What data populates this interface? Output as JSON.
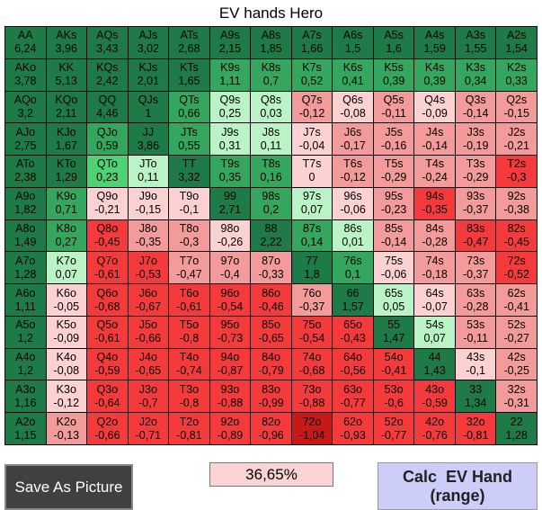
{
  "title": "EV hands Hero",
  "palette": {
    "D": "#1e7b47",
    "G": "#34a65e",
    "B": "#4fd274",
    "L": "#b9f3c6",
    "P": "#fbd1d1",
    "S": "#f39a9a",
    "R": "#f43a3a",
    "X": "#c91818"
  },
  "grid": {
    "rows": [
      [
        [
          "AA",
          "6,24",
          "D"
        ],
        [
          "AKs",
          "3,96",
          "D"
        ],
        [
          "AQs",
          "3,43",
          "D"
        ],
        [
          "AJs",
          "3,02",
          "D"
        ],
        [
          "ATs",
          "2,68",
          "D"
        ],
        [
          "A9s",
          "2,15",
          "D"
        ],
        [
          "A8s",
          "1,85",
          "D"
        ],
        [
          "A7s",
          "1,66",
          "D"
        ],
        [
          "A6s",
          "1,5",
          "D"
        ],
        [
          "A5s",
          "1,6",
          "D"
        ],
        [
          "A4s",
          "1,59",
          "D"
        ],
        [
          "A3s",
          "1,55",
          "D"
        ],
        [
          "A2s",
          "1,54",
          "D"
        ]
      ],
      [
        [
          "AKo",
          "3,78",
          "D"
        ],
        [
          "KK",
          "5,13",
          "D"
        ],
        [
          "KQs",
          "2,42",
          "D"
        ],
        [
          "KJs",
          "2,01",
          "D"
        ],
        [
          "KTs",
          "1,65",
          "D"
        ],
        [
          "K9s",
          "1,11",
          "G"
        ],
        [
          "K8s",
          "0,7",
          "G"
        ],
        [
          "K7s",
          "0,52",
          "G"
        ],
        [
          "K6s",
          "0,41",
          "G"
        ],
        [
          "K5s",
          "0,39",
          "G"
        ],
        [
          "K4s",
          "0,39",
          "G"
        ],
        [
          "K3s",
          "0,34",
          "G"
        ],
        [
          "K2s",
          "0,33",
          "G"
        ]
      ],
      [
        [
          "AQo",
          "3,2",
          "D"
        ],
        [
          "KQo",
          "2,11",
          "D"
        ],
        [
          "QQ",
          "4,46",
          "D"
        ],
        [
          "QJs",
          "1",
          "D"
        ],
        [
          "QTs",
          "0,66",
          "G"
        ],
        [
          "Q9s",
          "0,25",
          "L"
        ],
        [
          "Q8s",
          "0,03",
          "L"
        ],
        [
          "Q7s",
          "-0,12",
          "S"
        ],
        [
          "Q6s",
          "-0,08",
          "P"
        ],
        [
          "Q5s",
          "-0,11",
          "S"
        ],
        [
          "Q4s",
          "-0,09",
          "P"
        ],
        [
          "Q3s",
          "-0,14",
          "S"
        ],
        [
          "Q2s",
          "-0,15",
          "S"
        ]
      ],
      [
        [
          "AJo",
          "2,75",
          "D"
        ],
        [
          "KJo",
          "1,67",
          "D"
        ],
        [
          "QJo",
          "0,59",
          "G"
        ],
        [
          "JJ",
          "3,86",
          "D"
        ],
        [
          "JTs",
          "0,55",
          "G"
        ],
        [
          "J9s",
          "0,31",
          "L"
        ],
        [
          "J8s",
          "0,11",
          "L"
        ],
        [
          "J7s",
          "-0,04",
          "P"
        ],
        [
          "J6s",
          "-0,17",
          "S"
        ],
        [
          "J5s",
          "-0,16",
          "S"
        ],
        [
          "J4s",
          "-0,14",
          "S"
        ],
        [
          "J3s",
          "-0,19",
          "S"
        ],
        [
          "J2s",
          "-0,21",
          "S"
        ]
      ],
      [
        [
          "ATo",
          "2,38",
          "D"
        ],
        [
          "KTo",
          "1,29",
          "D"
        ],
        [
          "QTo",
          "0,23",
          "B"
        ],
        [
          "JTo",
          "0,11",
          "L"
        ],
        [
          "TT",
          "3,32",
          "D"
        ],
        [
          "T9s",
          "0,35",
          "G"
        ],
        [
          "T8s",
          "0,16",
          "G"
        ],
        [
          "T7s",
          "0",
          "P"
        ],
        [
          "T6s",
          "-0,12",
          "S"
        ],
        [
          "T5s",
          "-0,29",
          "S"
        ],
        [
          "T4s",
          "-0,24",
          "S"
        ],
        [
          "T3s",
          "-0,29",
          "S"
        ],
        [
          "T2s",
          "-0,3",
          "R"
        ]
      ],
      [
        [
          "A9o",
          "1,82",
          "D"
        ],
        [
          "K9o",
          "0,71",
          "G"
        ],
        [
          "Q9o",
          "-0,21",
          "P"
        ],
        [
          "J9o",
          "-0,15",
          "P"
        ],
        [
          "T9o",
          "-0,1",
          "P"
        ],
        [
          "99",
          "2,71",
          "D"
        ],
        [
          "98s",
          "0,2",
          "G"
        ],
        [
          "97s",
          "0,07",
          "L"
        ],
        [
          "96s",
          "-0,06",
          "P"
        ],
        [
          "95s",
          "-0,23",
          "S"
        ],
        [
          "94s",
          "-0,35",
          "R"
        ],
        [
          "93s",
          "-0,37",
          "S"
        ],
        [
          "92s",
          "-0,38",
          "S"
        ]
      ],
      [
        [
          "A8o",
          "1,49",
          "D"
        ],
        [
          "K8o",
          "0,27",
          "G"
        ],
        [
          "Q8o",
          "-0,45",
          "R"
        ],
        [
          "J8o",
          "-0,35",
          "S"
        ],
        [
          "T8o",
          "-0,3",
          "S"
        ],
        [
          "98o",
          "-0,26",
          "P"
        ],
        [
          "88",
          "2,22",
          "D"
        ],
        [
          "87s",
          "0,14",
          "G"
        ],
        [
          "86s",
          "0,01",
          "L"
        ],
        [
          "85s",
          "-0,14",
          "S"
        ],
        [
          "84s",
          "-0,28",
          "S"
        ],
        [
          "83s",
          "-0,47",
          "R"
        ],
        [
          "82s",
          "-0,45",
          "R"
        ]
      ],
      [
        [
          "A7o",
          "1,28",
          "D"
        ],
        [
          "K7o",
          "0,07",
          "L"
        ],
        [
          "Q7o",
          "-0,61",
          "R"
        ],
        [
          "J7o",
          "-0,53",
          "R"
        ],
        [
          "T7o",
          "-0,47",
          "S"
        ],
        [
          "97o",
          "-0,4",
          "S"
        ],
        [
          "87o",
          "-0,33",
          "S"
        ],
        [
          "77",
          "1,8",
          "D"
        ],
        [
          "76s",
          "0,1",
          "G"
        ],
        [
          "75s",
          "-0,06",
          "P"
        ],
        [
          "74s",
          "-0,18",
          "S"
        ],
        [
          "73s",
          "-0,37",
          "S"
        ],
        [
          "72s",
          "-0,52",
          "R"
        ]
      ],
      [
        [
          "A6o",
          "1,11",
          "D"
        ],
        [
          "K6o",
          "-0,05",
          "P"
        ],
        [
          "Q6o",
          "-0,68",
          "R"
        ],
        [
          "J6o",
          "-0,67",
          "R"
        ],
        [
          "T6o",
          "-0,61",
          "R"
        ],
        [
          "96o",
          "-0,54",
          "R"
        ],
        [
          "86o",
          "-0,46",
          "R"
        ],
        [
          "76o",
          "-0,37",
          "S"
        ],
        [
          "66",
          "1,57",
          "D"
        ],
        [
          "65s",
          "0,05",
          "L"
        ],
        [
          "64s",
          "-0,07",
          "P"
        ],
        [
          "63s",
          "-0,28",
          "S"
        ],
        [
          "62s",
          "-0,41",
          "S"
        ]
      ],
      [
        [
          "A5o",
          "1,2",
          "D"
        ],
        [
          "K5o",
          "-0,09",
          "P"
        ],
        [
          "Q5o",
          "-0,61",
          "R"
        ],
        [
          "J5o",
          "-0,66",
          "R"
        ],
        [
          "T5o",
          "-0,8",
          "R"
        ],
        [
          "95o",
          "-0,73",
          "R"
        ],
        [
          "85o",
          "-0,65",
          "R"
        ],
        [
          "75o",
          "-0,54",
          "R"
        ],
        [
          "65o",
          "-0,43",
          "R"
        ],
        [
          "55",
          "1,47",
          "D"
        ],
        [
          "54s",
          "0,07",
          "L"
        ],
        [
          "53s",
          "-0,11",
          "S"
        ],
        [
          "52s",
          "-0,27",
          "S"
        ]
      ],
      [
        [
          "A4o",
          "1,2",
          "D"
        ],
        [
          "K4o",
          "-0,08",
          "P"
        ],
        [
          "Q4o",
          "-0,59",
          "R"
        ],
        [
          "J4o",
          "-0,65",
          "R"
        ],
        [
          "T4o",
          "-0,74",
          "R"
        ],
        [
          "94o",
          "-0,87",
          "R"
        ],
        [
          "84o",
          "-0,79",
          "R"
        ],
        [
          "74o",
          "-0,68",
          "R"
        ],
        [
          "64o",
          "-0,56",
          "R"
        ],
        [
          "54o",
          "-0,41",
          "R"
        ],
        [
          "44",
          "1,43",
          "D"
        ],
        [
          "43s",
          "-0,1",
          "P"
        ],
        [
          "42s",
          "-0,25",
          "S"
        ]
      ],
      [
        [
          "A3o",
          "1,16",
          "D"
        ],
        [
          "K3o",
          "-0,12",
          "P"
        ],
        [
          "Q3o",
          "-0,64",
          "R"
        ],
        [
          "J3o",
          "-0,7",
          "R"
        ],
        [
          "T3o",
          "-0,8",
          "R"
        ],
        [
          "93o",
          "-0,88",
          "R"
        ],
        [
          "83o",
          "-0,99",
          "R"
        ],
        [
          "73o",
          "-0,88",
          "R"
        ],
        [
          "63o",
          "-0,77",
          "R"
        ],
        [
          "53o",
          "-0,6",
          "R"
        ],
        [
          "43o",
          "-0,59",
          "R"
        ],
        [
          "33",
          "1,34",
          "D"
        ],
        [
          "32s",
          "-0,31",
          "S"
        ]
      ],
      [
        [
          "A2o",
          "1,15",
          "D"
        ],
        [
          "K2o",
          "-0,13",
          "S"
        ],
        [
          "Q2o",
          "-0,66",
          "R"
        ],
        [
          "J2o",
          "-0,71",
          "R"
        ],
        [
          "T2o",
          "-0,81",
          "R"
        ],
        [
          "92o",
          "-0,89",
          "R"
        ],
        [
          "82o",
          "-0,96",
          "R"
        ],
        [
          "72o",
          "-1,04",
          "X"
        ],
        [
          "62o",
          "-0,93",
          "R"
        ],
        [
          "52o",
          "-0,77",
          "R"
        ],
        [
          "42o",
          "-0,76",
          "R"
        ],
        [
          "32o",
          "-0,81",
          "R"
        ],
        [
          "22",
          "1,28",
          "D"
        ]
      ]
    ]
  },
  "save_button": "Save As Picture",
  "percentage": "36,65%",
  "calc_button": [
    "Calc  EV Hand",
    "(range)"
  ]
}
